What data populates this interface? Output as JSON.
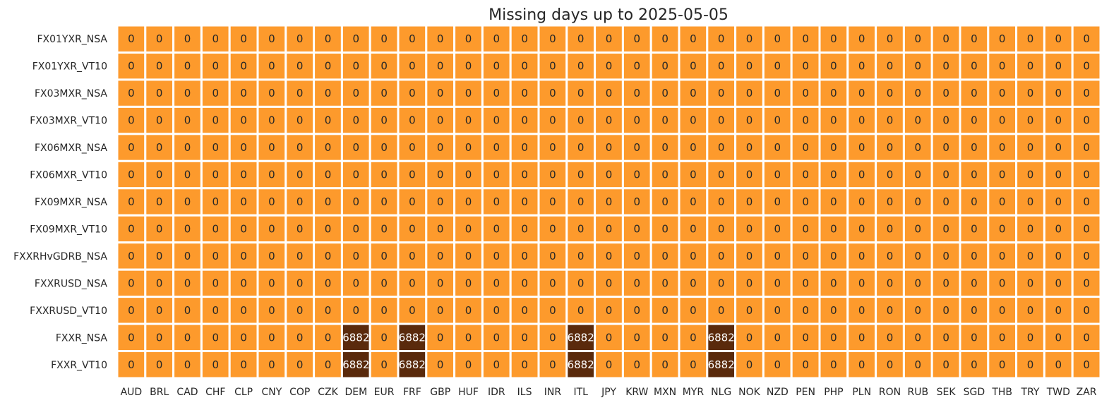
{
  "chart_data": {
    "type": "heatmap",
    "title": "Missing days up to 2025-05-05",
    "xlabel": "",
    "ylabel": "",
    "x_categories": [
      "AUD",
      "BRL",
      "CAD",
      "CHF",
      "CLP",
      "CNY",
      "COP",
      "CZK",
      "DEM",
      "EUR",
      "FRF",
      "GBP",
      "HUF",
      "IDR",
      "ILS",
      "INR",
      "ITL",
      "JPY",
      "KRW",
      "MXN",
      "MYR",
      "NLG",
      "NOK",
      "NZD",
      "PEN",
      "PHP",
      "PLN",
      "RON",
      "RUB",
      "SEK",
      "SGD",
      "THB",
      "TRY",
      "TWD",
      "ZAR"
    ],
    "y_categories": [
      "FX01YXR_NSA",
      "FX01YXR_VT10",
      "FX03MXR_NSA",
      "FX03MXR_VT10",
      "FX06MXR_NSA",
      "FX06MXR_VT10",
      "FX09MXR_NSA",
      "FX09MXR_VT10",
      "FXXRHvGDRB_NSA",
      "FXXRUSD_NSA",
      "FXXRUSD_VT10",
      "FXXR_NSA",
      "FXXR_VT10"
    ],
    "values": [
      [
        0,
        0,
        0,
        0,
        0,
        0,
        0,
        0,
        0,
        0,
        0,
        0,
        0,
        0,
        0,
        0,
        0,
        0,
        0,
        0,
        0,
        0,
        0,
        0,
        0,
        0,
        0,
        0,
        0,
        0,
        0,
        0,
        0,
        0,
        0
      ],
      [
        0,
        0,
        0,
        0,
        0,
        0,
        0,
        0,
        0,
        0,
        0,
        0,
        0,
        0,
        0,
        0,
        0,
        0,
        0,
        0,
        0,
        0,
        0,
        0,
        0,
        0,
        0,
        0,
        0,
        0,
        0,
        0,
        0,
        0,
        0
      ],
      [
        0,
        0,
        0,
        0,
        0,
        0,
        0,
        0,
        0,
        0,
        0,
        0,
        0,
        0,
        0,
        0,
        0,
        0,
        0,
        0,
        0,
        0,
        0,
        0,
        0,
        0,
        0,
        0,
        0,
        0,
        0,
        0,
        0,
        0,
        0
      ],
      [
        0,
        0,
        0,
        0,
        0,
        0,
        0,
        0,
        0,
        0,
        0,
        0,
        0,
        0,
        0,
        0,
        0,
        0,
        0,
        0,
        0,
        0,
        0,
        0,
        0,
        0,
        0,
        0,
        0,
        0,
        0,
        0,
        0,
        0,
        0
      ],
      [
        0,
        0,
        0,
        0,
        0,
        0,
        0,
        0,
        0,
        0,
        0,
        0,
        0,
        0,
        0,
        0,
        0,
        0,
        0,
        0,
        0,
        0,
        0,
        0,
        0,
        0,
        0,
        0,
        0,
        0,
        0,
        0,
        0,
        0,
        0
      ],
      [
        0,
        0,
        0,
        0,
        0,
        0,
        0,
        0,
        0,
        0,
        0,
        0,
        0,
        0,
        0,
        0,
        0,
        0,
        0,
        0,
        0,
        0,
        0,
        0,
        0,
        0,
        0,
        0,
        0,
        0,
        0,
        0,
        0,
        0,
        0
      ],
      [
        0,
        0,
        0,
        0,
        0,
        0,
        0,
        0,
        0,
        0,
        0,
        0,
        0,
        0,
        0,
        0,
        0,
        0,
        0,
        0,
        0,
        0,
        0,
        0,
        0,
        0,
        0,
        0,
        0,
        0,
        0,
        0,
        0,
        0,
        0
      ],
      [
        0,
        0,
        0,
        0,
        0,
        0,
        0,
        0,
        0,
        0,
        0,
        0,
        0,
        0,
        0,
        0,
        0,
        0,
        0,
        0,
        0,
        0,
        0,
        0,
        0,
        0,
        0,
        0,
        0,
        0,
        0,
        0,
        0,
        0,
        0
      ],
      [
        0,
        0,
        0,
        0,
        0,
        0,
        0,
        0,
        0,
        0,
        0,
        0,
        0,
        0,
        0,
        0,
        0,
        0,
        0,
        0,
        0,
        0,
        0,
        0,
        0,
        0,
        0,
        0,
        0,
        0,
        0,
        0,
        0,
        0,
        0
      ],
      [
        0,
        0,
        0,
        0,
        0,
        0,
        0,
        0,
        0,
        0,
        0,
        0,
        0,
        0,
        0,
        0,
        0,
        0,
        0,
        0,
        0,
        0,
        0,
        0,
        0,
        0,
        0,
        0,
        0,
        0,
        0,
        0,
        0,
        0,
        0
      ],
      [
        0,
        0,
        0,
        0,
        0,
        0,
        0,
        0,
        0,
        0,
        0,
        0,
        0,
        0,
        0,
        0,
        0,
        0,
        0,
        0,
        0,
        0,
        0,
        0,
        0,
        0,
        0,
        0,
        0,
        0,
        0,
        0,
        0,
        0,
        0
      ],
      [
        0,
        0,
        0,
        0,
        0,
        0,
        0,
        0,
        6882,
        0,
        6882,
        0,
        0,
        0,
        0,
        0,
        6882,
        0,
        0,
        0,
        0,
        6882,
        0,
        0,
        0,
        0,
        0,
        0,
        0,
        0,
        0,
        0,
        0,
        0,
        0
      ],
      [
        0,
        0,
        0,
        0,
        0,
        0,
        0,
        0,
        6882,
        0,
        6882,
        0,
        0,
        0,
        0,
        0,
        6882,
        0,
        0,
        0,
        0,
        6882,
        0,
        0,
        0,
        0,
        0,
        0,
        0,
        0,
        0,
        0,
        0,
        0,
        0
      ]
    ],
    "colors": {
      "zero": "#fd9a2c",
      "high": "#5a2a0c",
      "label_on_zero": "#262626",
      "label_on_high": "#ffffff",
      "cell_border": "#ffffff"
    },
    "grid": false,
    "legend": "none"
  }
}
